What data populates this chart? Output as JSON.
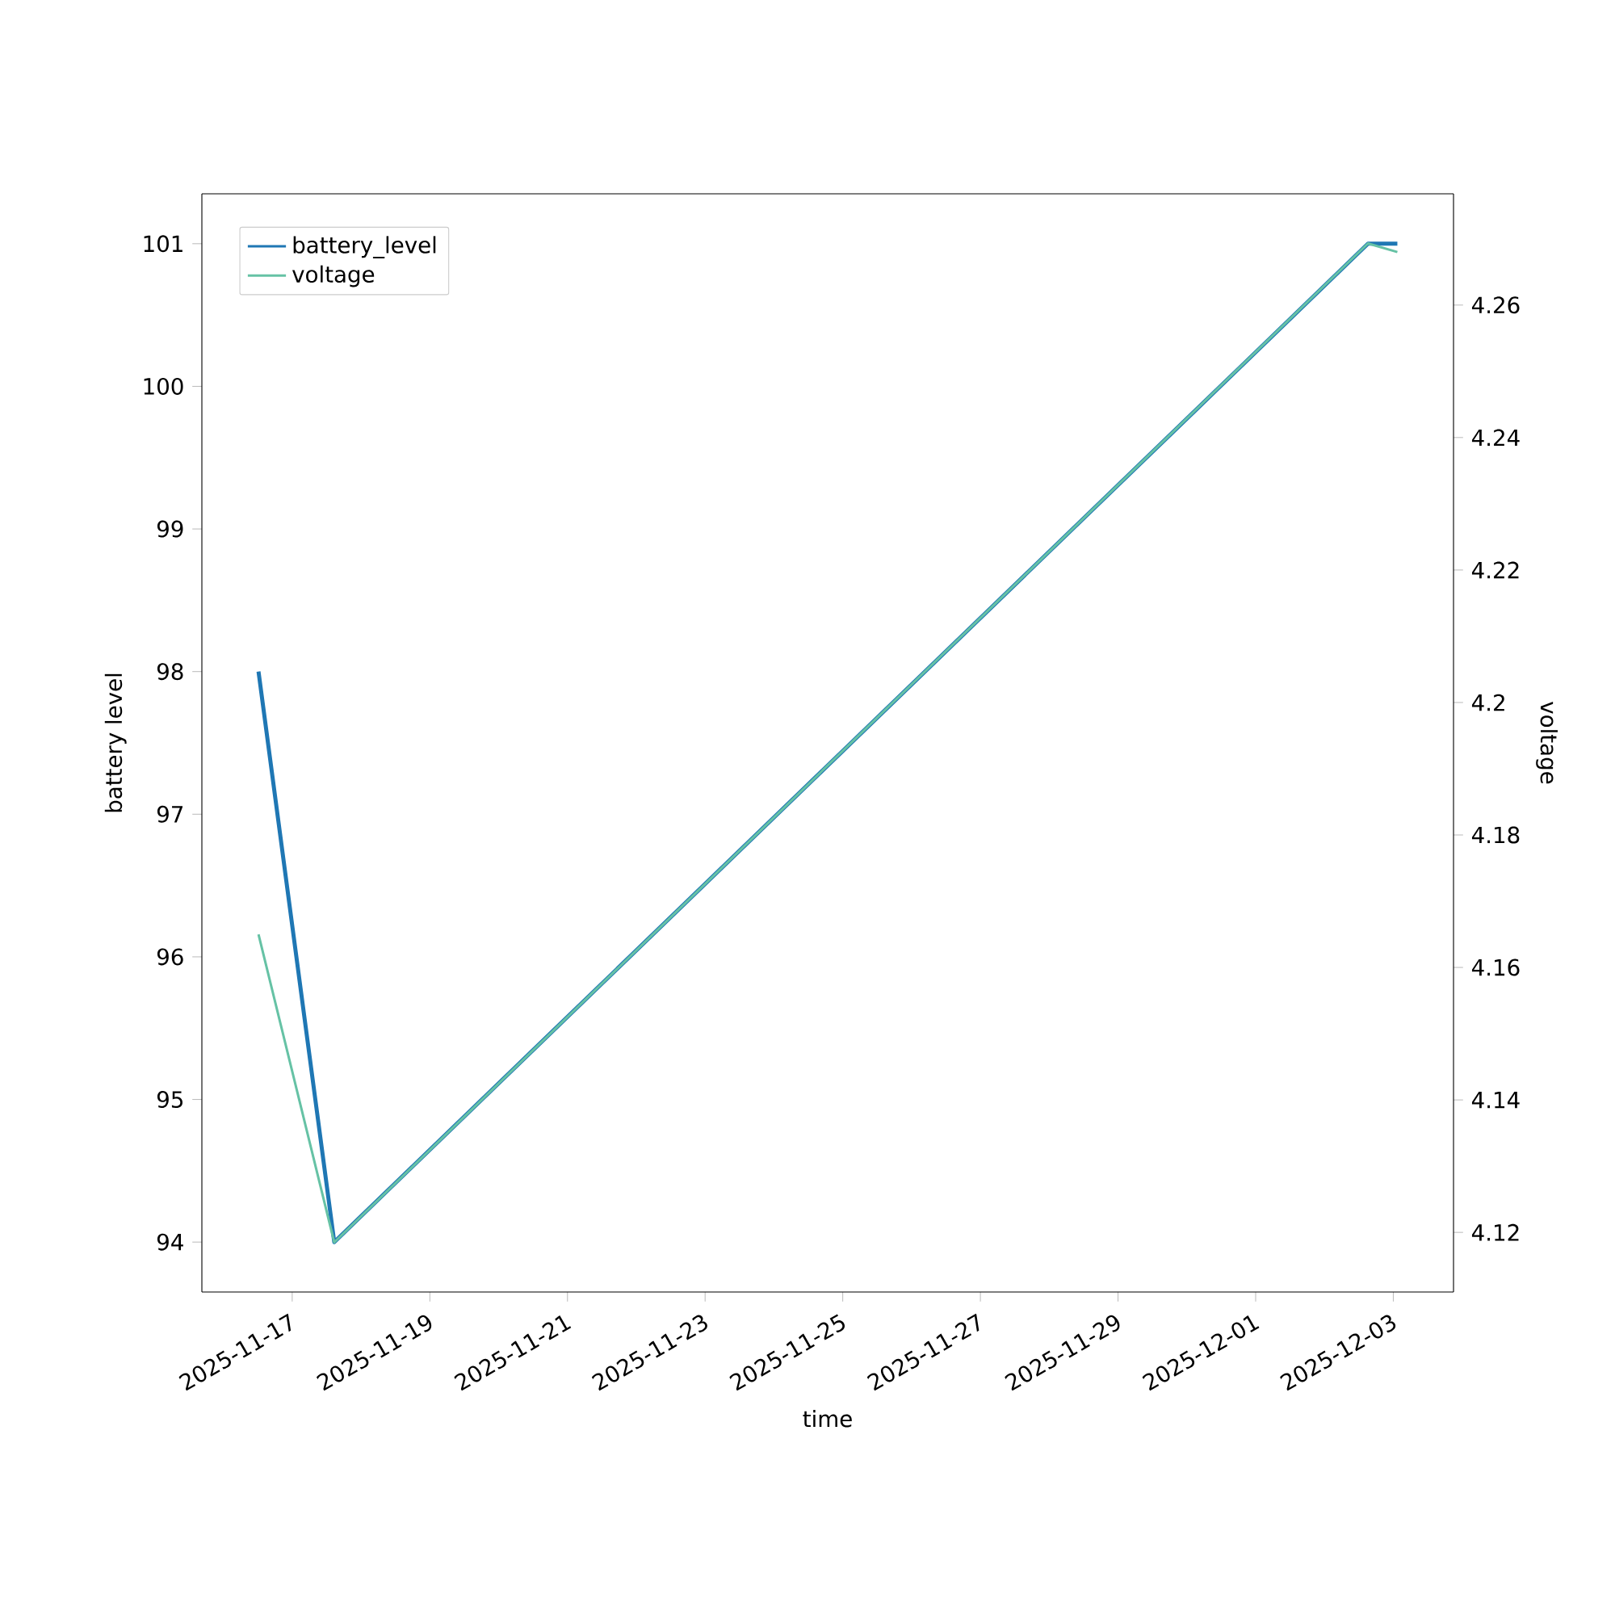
{
  "chart_data": {
    "type": "line",
    "xlabel": "time",
    "ylabel": "battery level",
    "y2label": "voltage",
    "x": [
      "2025-11-16T12:15",
      "2025-11-17T14:40",
      "2025-12-02T15:10",
      "2025-12-03T01:25"
    ],
    "series": [
      {
        "name": "battery_level",
        "color": "#1f77b4",
        "values": [
          98,
          94,
          101,
          101
        ]
      },
      {
        "name": "voltage",
        "color": "#66c2a5",
        "axis": "y2",
        "values": [
          4.165,
          4.1185,
          4.2693,
          4.268
        ]
      }
    ],
    "xlim": [
      "2025-11-15T16:30",
      "2025-12-03T21:00"
    ],
    "xticks": [
      "2025-11-17",
      "2025-11-19",
      "2025-11-21",
      "2025-11-23",
      "2025-11-25",
      "2025-11-27",
      "2025-11-29",
      "2025-12-01",
      "2025-12-03"
    ],
    "ylim": [
      93.65,
      101.35
    ],
    "yticks": [
      94,
      95,
      96,
      97,
      98,
      99,
      100,
      101
    ],
    "y2lim": [
      4.111,
      4.2768
    ],
    "y2ticks": [
      4.12,
      4.14,
      4.16,
      4.18,
      4.2,
      4.22,
      4.24,
      4.26
    ],
    "legend": "top left"
  }
}
